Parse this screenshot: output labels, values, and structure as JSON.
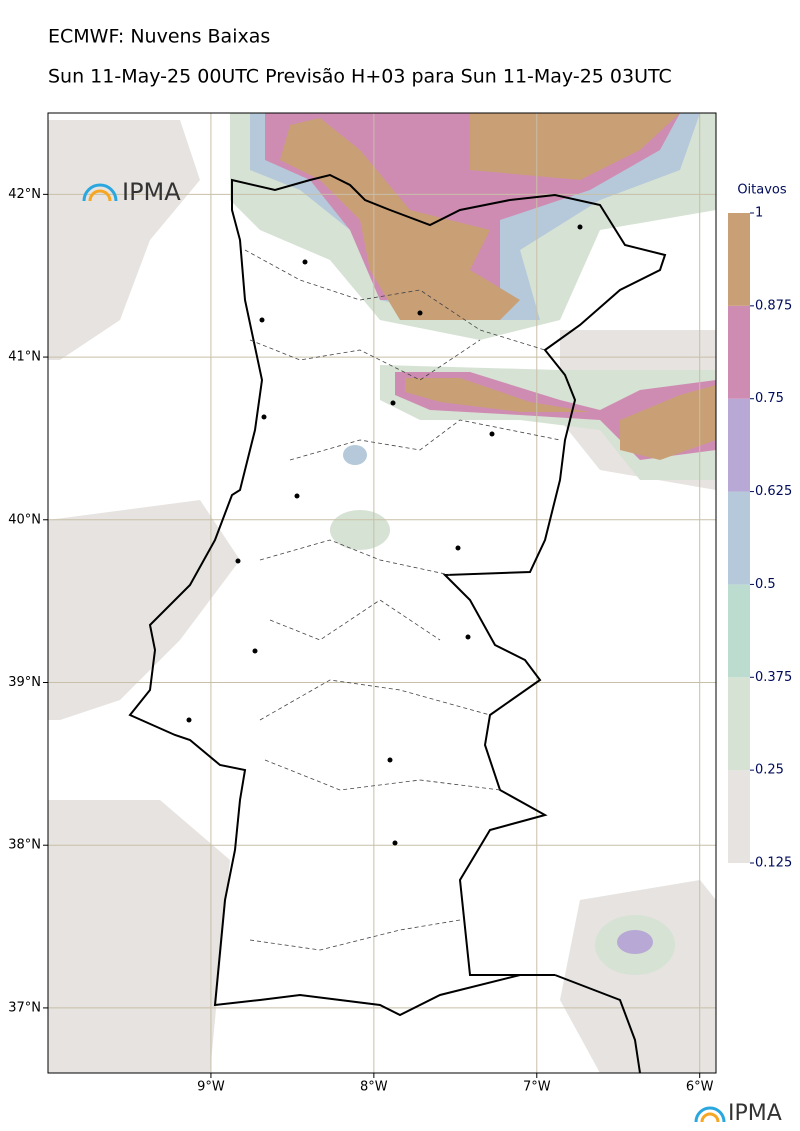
{
  "title": "ECMWF: Nuvens Baixas",
  "subtitle": "Sun 11-May-25 00UTC Previsão H+03 para Sun 11-May-25 03UTC",
  "logo": "IPMA",
  "map": {
    "xlim": [
      -10,
      -5.9
    ],
    "ylim": [
      36.6,
      42.5
    ],
    "xticks": [
      {
        "value": -9,
        "label": "9°W"
      },
      {
        "value": -8,
        "label": "8°W"
      },
      {
        "value": -7,
        "label": "7°W"
      },
      {
        "value": -6,
        "label": "6°W"
      }
    ],
    "yticks": [
      {
        "value": 42,
        "label": "42°N"
      },
      {
        "value": 41,
        "label": "41°N"
      },
      {
        "value": 40,
        "label": "40°N"
      },
      {
        "value": 39,
        "label": "39°N"
      },
      {
        "value": 38,
        "label": "38°N"
      },
      {
        "value": 37,
        "label": "37°N"
      }
    ]
  },
  "colorbar": {
    "title": "Oitavos",
    "levels": [
      0.125,
      0.25,
      0.375,
      0.5,
      0.625,
      0.75,
      0.875,
      1
    ],
    "colors": [
      "#e6e3e0",
      "#d6e2d3",
      "#bddcd0",
      "#b5c9da",
      "#b8a8d5",
      "#cf8cb3",
      "#c99f76"
    ]
  }
}
